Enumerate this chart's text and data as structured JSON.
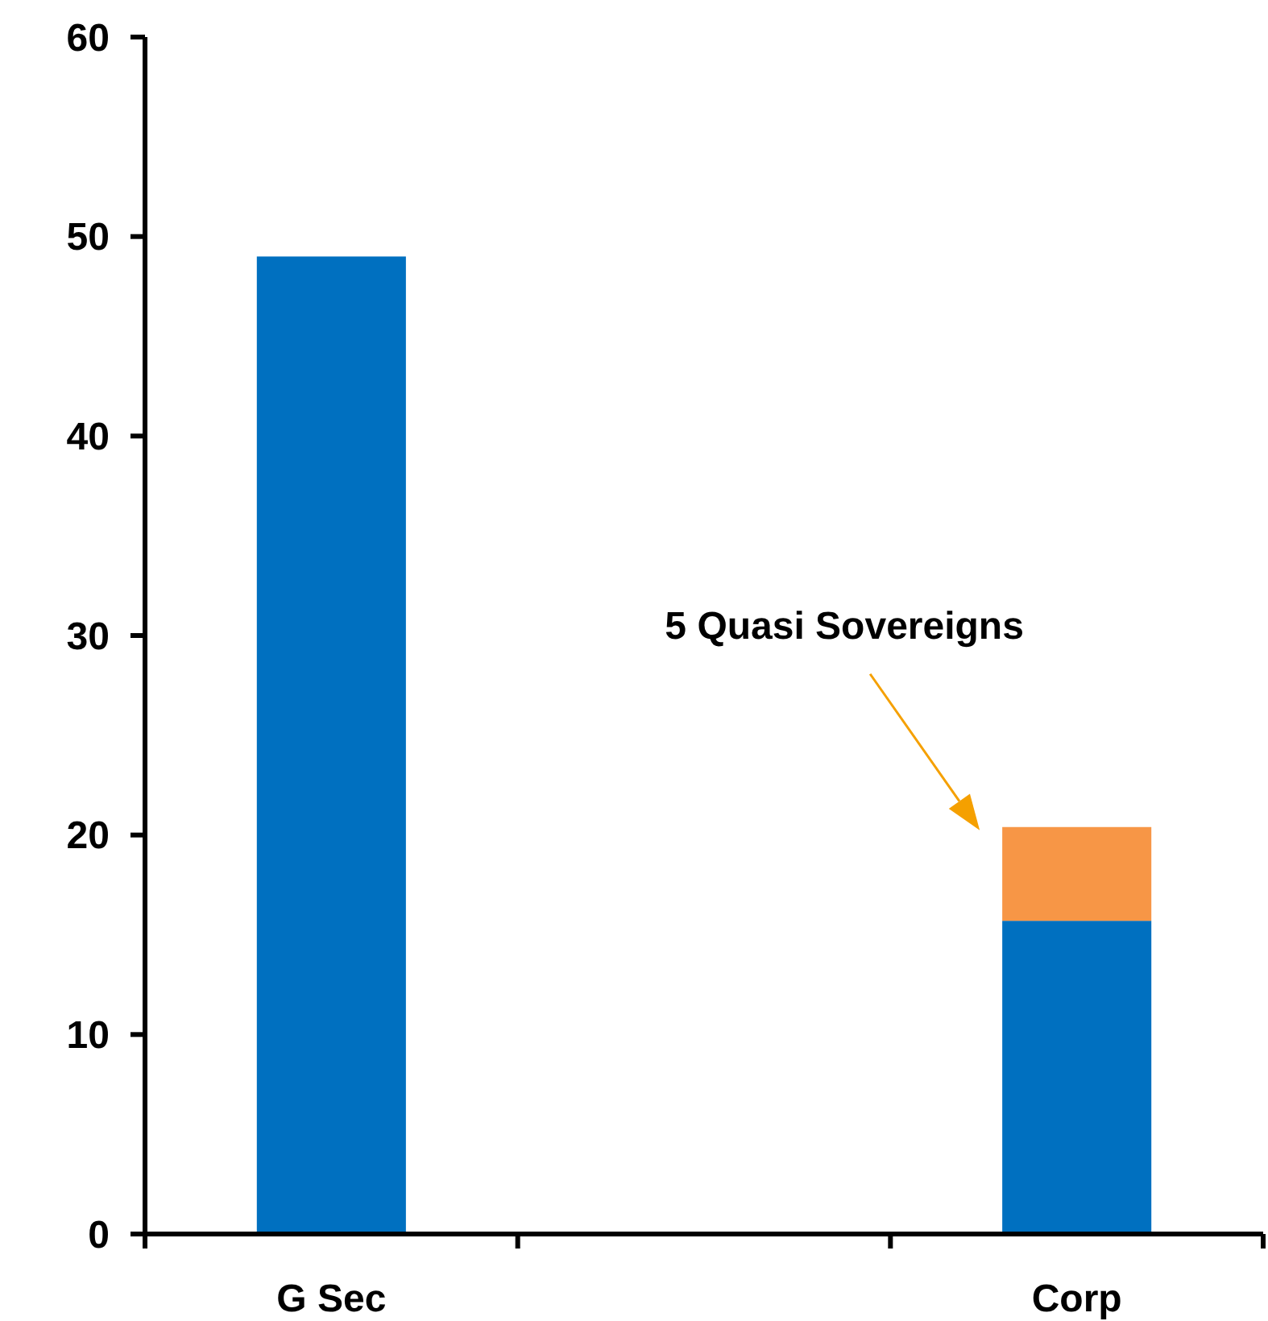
{
  "chart_data": {
    "type": "bar",
    "stacked": true,
    "categories": [
      "G Sec",
      null,
      "Corp"
    ],
    "series": [
      {
        "color": "#0070c0",
        "values": [
          49,
          null,
          15.7
        ]
      },
      {
        "color": "#f79646",
        "values": [
          null,
          null,
          4.7
        ]
      }
    ],
    "ylim": [
      0,
      60
    ],
    "yticks": [
      0,
      10,
      20,
      30,
      40,
      50,
      60
    ],
    "grid": false,
    "annotations": [
      "5 Quasi Sovereigns"
    ]
  }
}
